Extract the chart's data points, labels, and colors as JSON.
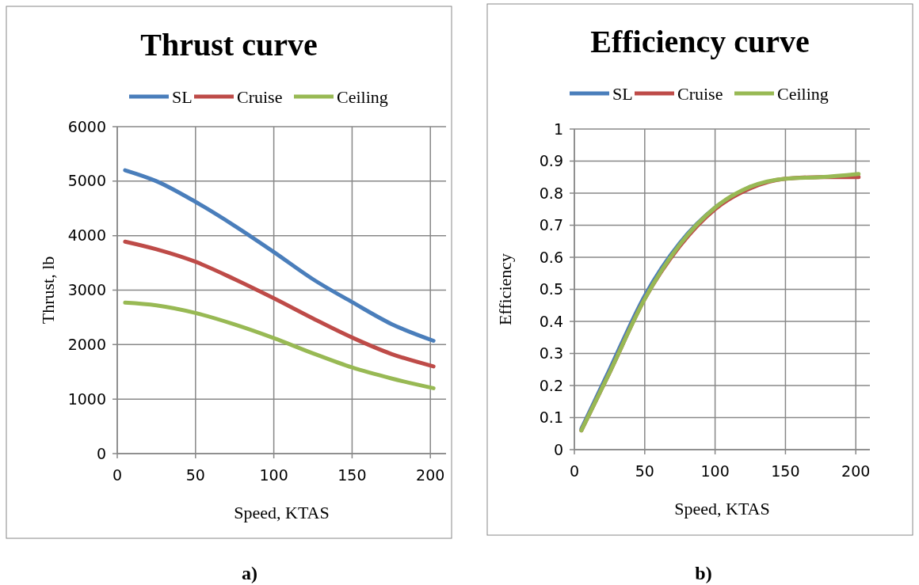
{
  "chart_data": [
    {
      "type": "line",
      "title": "Thrust curve",
      "xlabel": "Speed, KTAS",
      "ylabel": "Thrust, lb",
      "annotations": [
        "a)"
      ],
      "xlim": [
        0,
        210
      ],
      "xticks": [
        0,
        50,
        100,
        150,
        200
      ],
      "ylim": [
        0,
        6000
      ],
      "yticks": [
        0,
        1000,
        2000,
        3000,
        4000,
        5000,
        6000
      ],
      "grid": true,
      "legend": "top",
      "marker": "none",
      "line_style": "solid",
      "x": [
        5,
        25,
        50,
        75,
        100,
        125,
        150,
        175,
        202
      ],
      "series": [
        {
          "name": "SL",
          "color": "#4a7ebb",
          "values": [
            5200,
            5000,
            4620,
            4180,
            3700,
            3200,
            2780,
            2380,
            2070
          ]
        },
        {
          "name": "Cruise",
          "color": "#be4b48",
          "values": [
            3890,
            3750,
            3520,
            3200,
            2850,
            2480,
            2130,
            1830,
            1600
          ]
        },
        {
          "name": "Ceiling",
          "color": "#98b954",
          "values": [
            2770,
            2720,
            2580,
            2370,
            2120,
            1840,
            1580,
            1380,
            1200
          ]
        }
      ]
    },
    {
      "type": "line",
      "title": "Efficiency curve",
      "xlabel": "Speed, KTAS",
      "ylabel": "Efficiency",
      "annotations": [
        "b)"
      ],
      "xlim": [
        0,
        210
      ],
      "xticks": [
        0,
        50,
        100,
        150,
        200
      ],
      "ylim": [
        0,
        1
      ],
      "yticks": [
        0,
        0.1,
        0.2,
        0.3,
        0.4,
        0.5,
        0.6,
        0.7,
        0.8,
        0.9,
        1
      ],
      "grid": true,
      "legend": "top",
      "marker": "none",
      "line_style": "solid",
      "x": [
        5,
        25,
        50,
        75,
        100,
        125,
        150,
        175,
        202
      ],
      "series": [
        {
          "name": "SL",
          "color": "#4a7ebb",
          "values": [
            0.065,
            0.25,
            0.48,
            0.645,
            0.755,
            0.82,
            null,
            null,
            null
          ]
        },
        {
          "name": "Cruise",
          "color": "#be4b48",
          "values": [
            0.06,
            0.24,
            0.47,
            0.635,
            0.75,
            0.815,
            0.845,
            0.85,
            0.85
          ]
        },
        {
          "name": "Ceiling",
          "color": "#98b954",
          "values": [
            0.06,
            0.24,
            0.47,
            0.64,
            0.755,
            0.82,
            0.845,
            0.85,
            0.86
          ]
        }
      ]
    }
  ]
}
